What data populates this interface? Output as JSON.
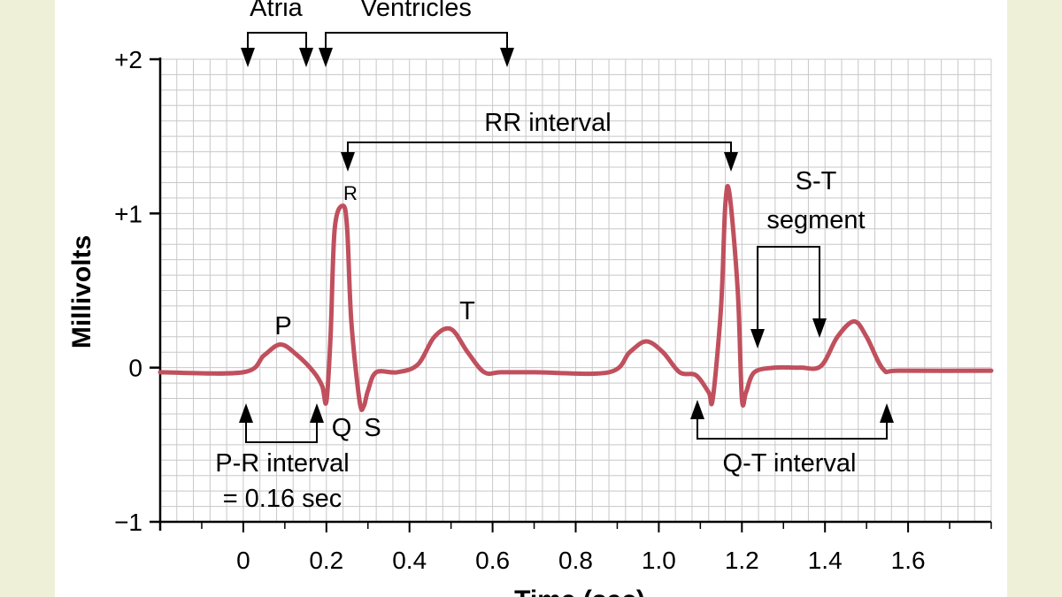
{
  "chart_data": {
    "type": "line",
    "xlabel": "Time (sec)",
    "ylabel": "Millivolts",
    "xlim": [
      -0.2,
      1.8
    ],
    "ylim": [
      -1,
      2
    ],
    "x_ticks": [
      "0",
      "0.2",
      "0.4",
      "0.6",
      "0.8",
      "1.0",
      "1.2",
      "1.4",
      "1.6"
    ],
    "y_ticks": [
      "+2",
      "+1",
      "0",
      "−1"
    ],
    "grid": true,
    "series": [
      {
        "x": [
          -0.2,
          0.0,
          0.05,
          0.09,
          0.13,
          0.17,
          0.19,
          0.2,
          0.21,
          0.22,
          0.24,
          0.25,
          0.26,
          0.28,
          0.29,
          0.3,
          0.32,
          0.37,
          0.42,
          0.46,
          0.5,
          0.54,
          0.58,
          0.62,
          0.7,
          0.88,
          0.93,
          0.97,
          1.01,
          1.05,
          1.09,
          1.12,
          1.13,
          1.15,
          1.16,
          1.17,
          1.19,
          1.2,
          1.21,
          1.23,
          1.28,
          1.34,
          1.39,
          1.43,
          1.47,
          1.5,
          1.54,
          1.58,
          1.8
        ],
        "y": [
          -0.03,
          -0.03,
          0.08,
          0.15,
          0.08,
          -0.03,
          -0.12,
          -0.22,
          0.2,
          0.9,
          1.05,
          0.9,
          0.3,
          -0.22,
          -0.25,
          -0.15,
          -0.03,
          -0.03,
          0.02,
          0.2,
          0.25,
          0.1,
          -0.03,
          -0.03,
          -0.03,
          -0.03,
          0.1,
          0.17,
          0.1,
          -0.03,
          -0.05,
          -0.16,
          -0.2,
          0.4,
          1.05,
          1.13,
          0.5,
          -0.2,
          -0.16,
          -0.03,
          0.0,
          0.0,
          0.01,
          0.2,
          0.3,
          0.2,
          -0.01,
          -0.02,
          -0.02
        ]
      }
    ],
    "point_labels": [
      "P",
      "R",
      "T",
      "Q",
      "S"
    ],
    "annotations": {
      "atria": "Atria",
      "ventricles": "Ventricles",
      "rr_interval": "RR interval",
      "st_segment_line1": "S-T",
      "st_segment_line2": "segment",
      "pr_interval_line1": "P-R interval",
      "pr_interval_line2": "= 0.16 sec",
      "qt_interval": "Q-T interval"
    }
  },
  "colors": {
    "trace": "#c0505e",
    "grid": "#c8c8c8",
    "axis": "#000000"
  }
}
